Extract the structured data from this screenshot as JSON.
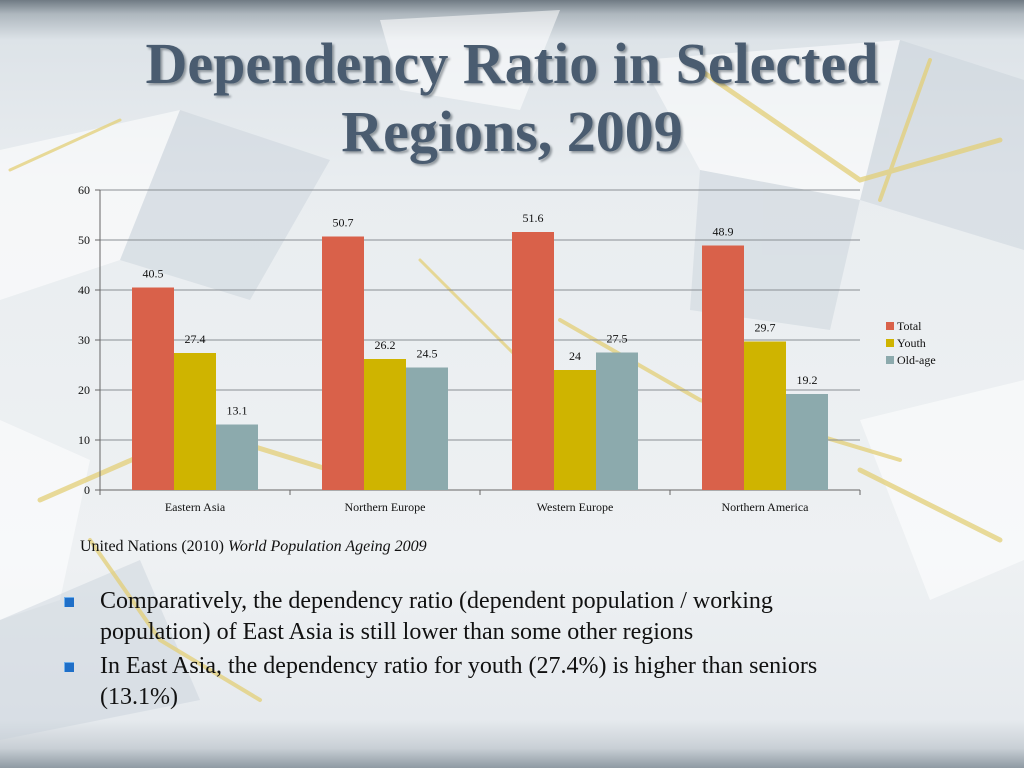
{
  "slide": {
    "title_line1": "Dependency Ratio in Selected",
    "title_line2": "Regions, 2009",
    "source_text": "United Nations (2010) ",
    "source_work": "World Population Ageing 2009",
    "bullets": [
      "Comparatively, the dependency ratio (dependent population / working population) of East Asia is still lower than some other regions",
      "In East Asia, the dependency ratio for youth (27.4%) is higher than seniors (13.1%)"
    ]
  },
  "colors": {
    "title": "#4a5c70",
    "total": "#d9614a",
    "youth": "#cfb400",
    "oldage": "#8caaad",
    "bullet": "#1f6fc8"
  },
  "chart_data": {
    "type": "bar",
    "categories": [
      "Eastern Asia",
      "Northern Europe",
      "Western Europe",
      "Northern America"
    ],
    "series": [
      {
        "name": "Total",
        "values": [
          40.5,
          50.7,
          51.6,
          48.9
        ],
        "labels": [
          "40.5",
          "50.7",
          "51.6",
          "48.9"
        ]
      },
      {
        "name": "Youth",
        "values": [
          27.4,
          26.2,
          24,
          29.7
        ],
        "labels": [
          "27.4",
          "26.2",
          "24",
          "29.7"
        ]
      },
      {
        "name": "Old-age",
        "values": [
          13.1,
          24.5,
          27.5,
          19.2
        ],
        "labels": [
          "13.1",
          "24.5",
          "27.5",
          "19.2"
        ]
      }
    ],
    "yticks": [
      "0",
      "10",
      "20",
      "30",
      "40",
      "50",
      "60"
    ],
    "ylim": [
      0,
      60
    ],
    "grid": true,
    "legend_position": "right"
  }
}
